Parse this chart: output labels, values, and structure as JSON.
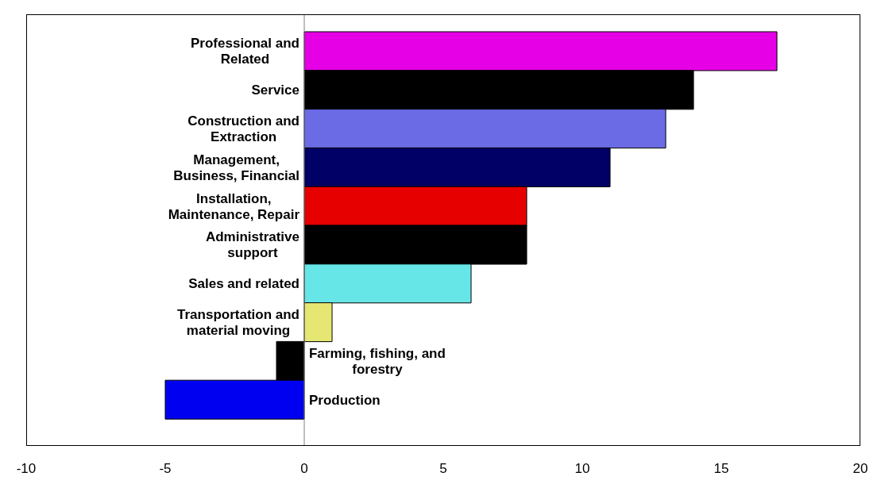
{
  "chart_data": {
    "type": "bar",
    "orientation": "horizontal",
    "categories": [
      "Professional and Related",
      "Service",
      "Construction and Extraction",
      "Management, Business, Financial",
      "Installation, Maintenance, Repair",
      "Administrative support",
      "Sales and related",
      "Transportation and material moving",
      "Farming, fishing, and forestry",
      "Production"
    ],
    "values": [
      17,
      14,
      13,
      11,
      8,
      8,
      6,
      1,
      -1,
      -5
    ],
    "colors": [
      "#e600e6",
      "#000000",
      "#6b6be6",
      "#000066",
      "#e60000",
      "#000000",
      "#66e6e6",
      "#e6e673",
      "#000000",
      "#0000f0"
    ],
    "xlim": [
      -10,
      20
    ],
    "xticks": [
      -10,
      -5,
      0,
      5,
      10,
      15,
      20
    ]
  }
}
